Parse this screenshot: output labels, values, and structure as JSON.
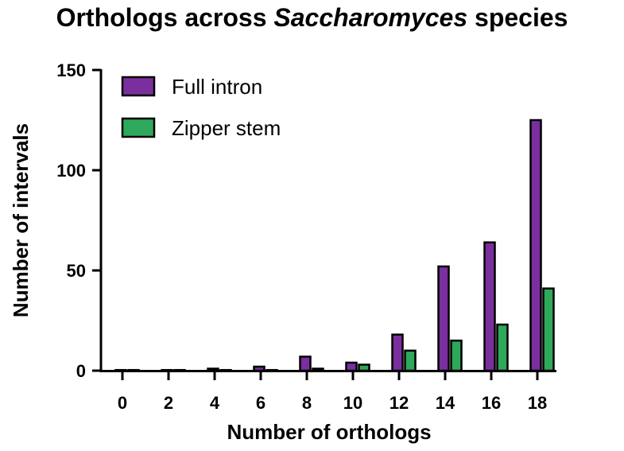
{
  "chart_data": {
    "type": "bar",
    "title_parts": [
      "Orthologs across ",
      "Saccharomyces",
      " species"
    ],
    "xlabel": "Number of orthologs",
    "ylabel": "Number of intervals",
    "categories": [
      "0",
      "2",
      "4",
      "6",
      "8",
      "10",
      "12",
      "14",
      "16",
      "18"
    ],
    "series": [
      {
        "name": "Full intron",
        "color": "#7B2F9E",
        "values": [
          0,
          0,
          1,
          2,
          7,
          4,
          18,
          52,
          64,
          125
        ]
      },
      {
        "name": "Zipper stem",
        "color": "#2EA85A",
        "values": [
          0,
          0,
          0,
          0,
          1,
          3,
          10,
          15,
          23,
          41
        ]
      }
    ],
    "y_ticks": [
      0,
      50,
      100,
      150
    ],
    "ylim": [
      0,
      150
    ],
    "legend_position": "top-left",
    "grid": false
  }
}
